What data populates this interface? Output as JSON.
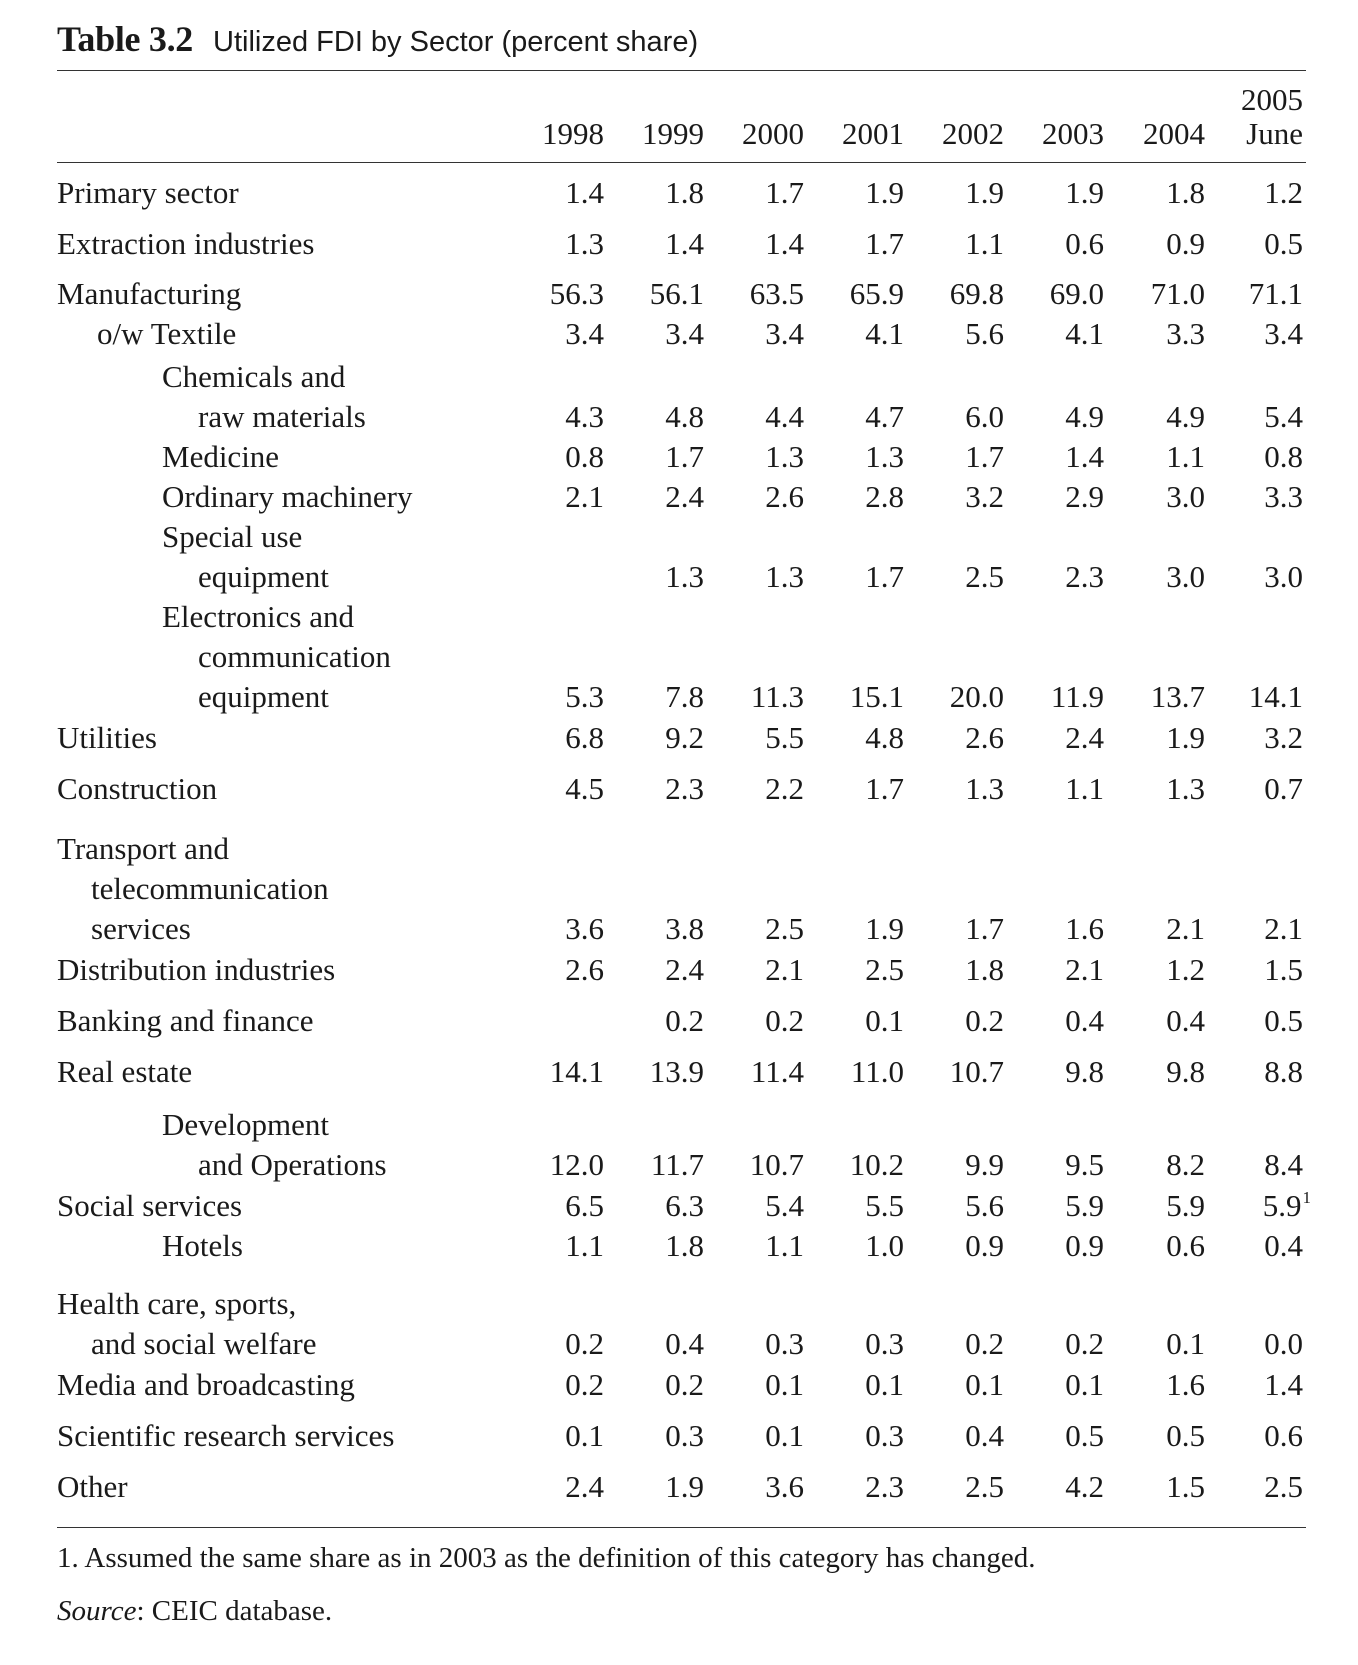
{
  "table": {
    "label": "Table 3.2",
    "caption": "Utilized FDI by Sector (percent share)",
    "columns": [
      {
        "top": "",
        "bottom": "1998"
      },
      {
        "top": "",
        "bottom": "1999"
      },
      {
        "top": "",
        "bottom": "2000"
      },
      {
        "top": "",
        "bottom": "2001"
      },
      {
        "top": "",
        "bottom": "2002"
      },
      {
        "top": "",
        "bottom": "2003"
      },
      {
        "top": "",
        "bottom": "2004"
      },
      {
        "top": "2005",
        "bottom": "June"
      }
    ],
    "rows": [
      {
        "label": [
          "Primary sector"
        ],
        "level": 0,
        "values": [
          "1.4",
          "1.8",
          "1.7",
          "1.9",
          "1.9",
          "1.9",
          "1.8",
          "1.2"
        ]
      },
      {
        "label": [
          "Extraction industries"
        ],
        "level": 0,
        "values": [
          "1.3",
          "1.4",
          "1.4",
          "1.7",
          "1.1",
          "0.6",
          "0.9",
          "0.5"
        ]
      },
      {
        "label": [
          "Manufacturing"
        ],
        "level": 0,
        "values": [
          "56.3",
          "56.1",
          "63.5",
          "65.9",
          "69.8",
          "69.0",
          "71.0",
          "71.1"
        ]
      },
      {
        "label": [
          "o/w Textile"
        ],
        "level": 1,
        "values": [
          "3.4",
          "3.4",
          "3.4",
          "4.1",
          "5.6",
          "4.1",
          "3.3",
          "3.4"
        ]
      },
      {
        "label": [
          "Chemicals and",
          "raw materials"
        ],
        "level": 2,
        "values": [
          "4.3",
          "4.8",
          "4.4",
          "4.7",
          "6.0",
          "4.9",
          "4.9",
          "5.4"
        ]
      },
      {
        "label": [
          "Medicine"
        ],
        "level": 2,
        "values": [
          "0.8",
          "1.7",
          "1.3",
          "1.3",
          "1.7",
          "1.4",
          "1.1",
          "0.8"
        ]
      },
      {
        "label": [
          "Ordinary machinery"
        ],
        "level": 2,
        "values": [
          "2.1",
          "2.4",
          "2.6",
          "2.8",
          "3.2",
          "2.9",
          "3.0",
          "3.3"
        ]
      },
      {
        "label": [
          "Special use",
          "equipment"
        ],
        "level": 2,
        "values": [
          "",
          "1.3",
          "1.3",
          "1.7",
          "2.5",
          "2.3",
          "3.0",
          "3.0"
        ]
      },
      {
        "label": [
          "Electronics and",
          "communication",
          "equipment"
        ],
        "level": 2,
        "values": [
          "5.3",
          "7.8",
          "11.3",
          "15.1",
          "20.0",
          "11.9",
          "13.7",
          "14.1"
        ]
      },
      {
        "label": [
          "Utilities"
        ],
        "level": 0,
        "values": [
          "6.8",
          "9.2",
          "5.5",
          "4.8",
          "2.6",
          "2.4",
          "1.9",
          "3.2"
        ]
      },
      {
        "label": [
          "Construction"
        ],
        "level": 0,
        "values": [
          "4.5",
          "2.3",
          "2.2",
          "1.7",
          "1.3",
          "1.1",
          "1.3",
          "0.7"
        ]
      },
      {
        "label": [
          "Transport and",
          "telecommunication",
          "services"
        ],
        "level": 0,
        "values": [
          "3.6",
          "3.8",
          "2.5",
          "1.9",
          "1.7",
          "1.6",
          "2.1",
          "2.1"
        ]
      },
      {
        "label": [
          "Distribution industries"
        ],
        "level": 0,
        "values": [
          "2.6",
          "2.4",
          "2.1",
          "2.5",
          "1.8",
          "2.1",
          "1.2",
          "1.5"
        ]
      },
      {
        "label": [
          "Banking and finance"
        ],
        "level": 0,
        "values": [
          "",
          "0.2",
          "0.2",
          "0.1",
          "0.2",
          "0.4",
          "0.4",
          "0.5"
        ]
      },
      {
        "label": [
          "Real estate"
        ],
        "level": 0,
        "values": [
          "14.1",
          "13.9",
          "11.4",
          "11.0",
          "10.7",
          "9.8",
          "9.8",
          "8.8"
        ]
      },
      {
        "label": [
          "Development",
          "and Operations"
        ],
        "level": 2,
        "values": [
          "12.0",
          "11.7",
          "10.7",
          "10.2",
          "9.9",
          "9.5",
          "8.2",
          "8.4"
        ]
      },
      {
        "label": [
          "Social services"
        ],
        "level": 0,
        "values": [
          "6.5",
          "6.3",
          "5.4",
          "5.5",
          "5.6",
          "5.9",
          "5.9",
          "5.9"
        ],
        "last_note": "1"
      },
      {
        "label": [
          "Hotels"
        ],
        "level": 2,
        "values": [
          "1.1",
          "1.8",
          "1.1",
          "1.0",
          "0.9",
          "0.9",
          "0.6",
          "0.4"
        ]
      },
      {
        "label": [
          "Health care, sports,",
          "and social welfare"
        ],
        "level": 0,
        "values": [
          "0.2",
          "0.4",
          "0.3",
          "0.3",
          "0.2",
          "0.2",
          "0.1",
          "0.0"
        ]
      },
      {
        "label": [
          "Media and broadcasting"
        ],
        "level": 0,
        "values": [
          "0.2",
          "0.2",
          "0.1",
          "0.1",
          "0.1",
          "0.1",
          "1.6",
          "1.4"
        ]
      },
      {
        "label": [
          "Scientific research services"
        ],
        "level": 0,
        "values": [
          "0.1",
          "0.3",
          "0.1",
          "0.3",
          "0.4",
          "0.5",
          "0.5",
          "0.6"
        ]
      },
      {
        "label": [
          "Other"
        ],
        "level": 0,
        "values": [
          "2.4",
          "1.9",
          "3.6",
          "2.3",
          "2.5",
          "4.2",
          "1.5",
          "2.5"
        ]
      }
    ],
    "footnote": "1. Assumed the same share as in 2003 as the definition of this category has changed.",
    "source_label": "Source",
    "source_text": ": CEIC database."
  }
}
